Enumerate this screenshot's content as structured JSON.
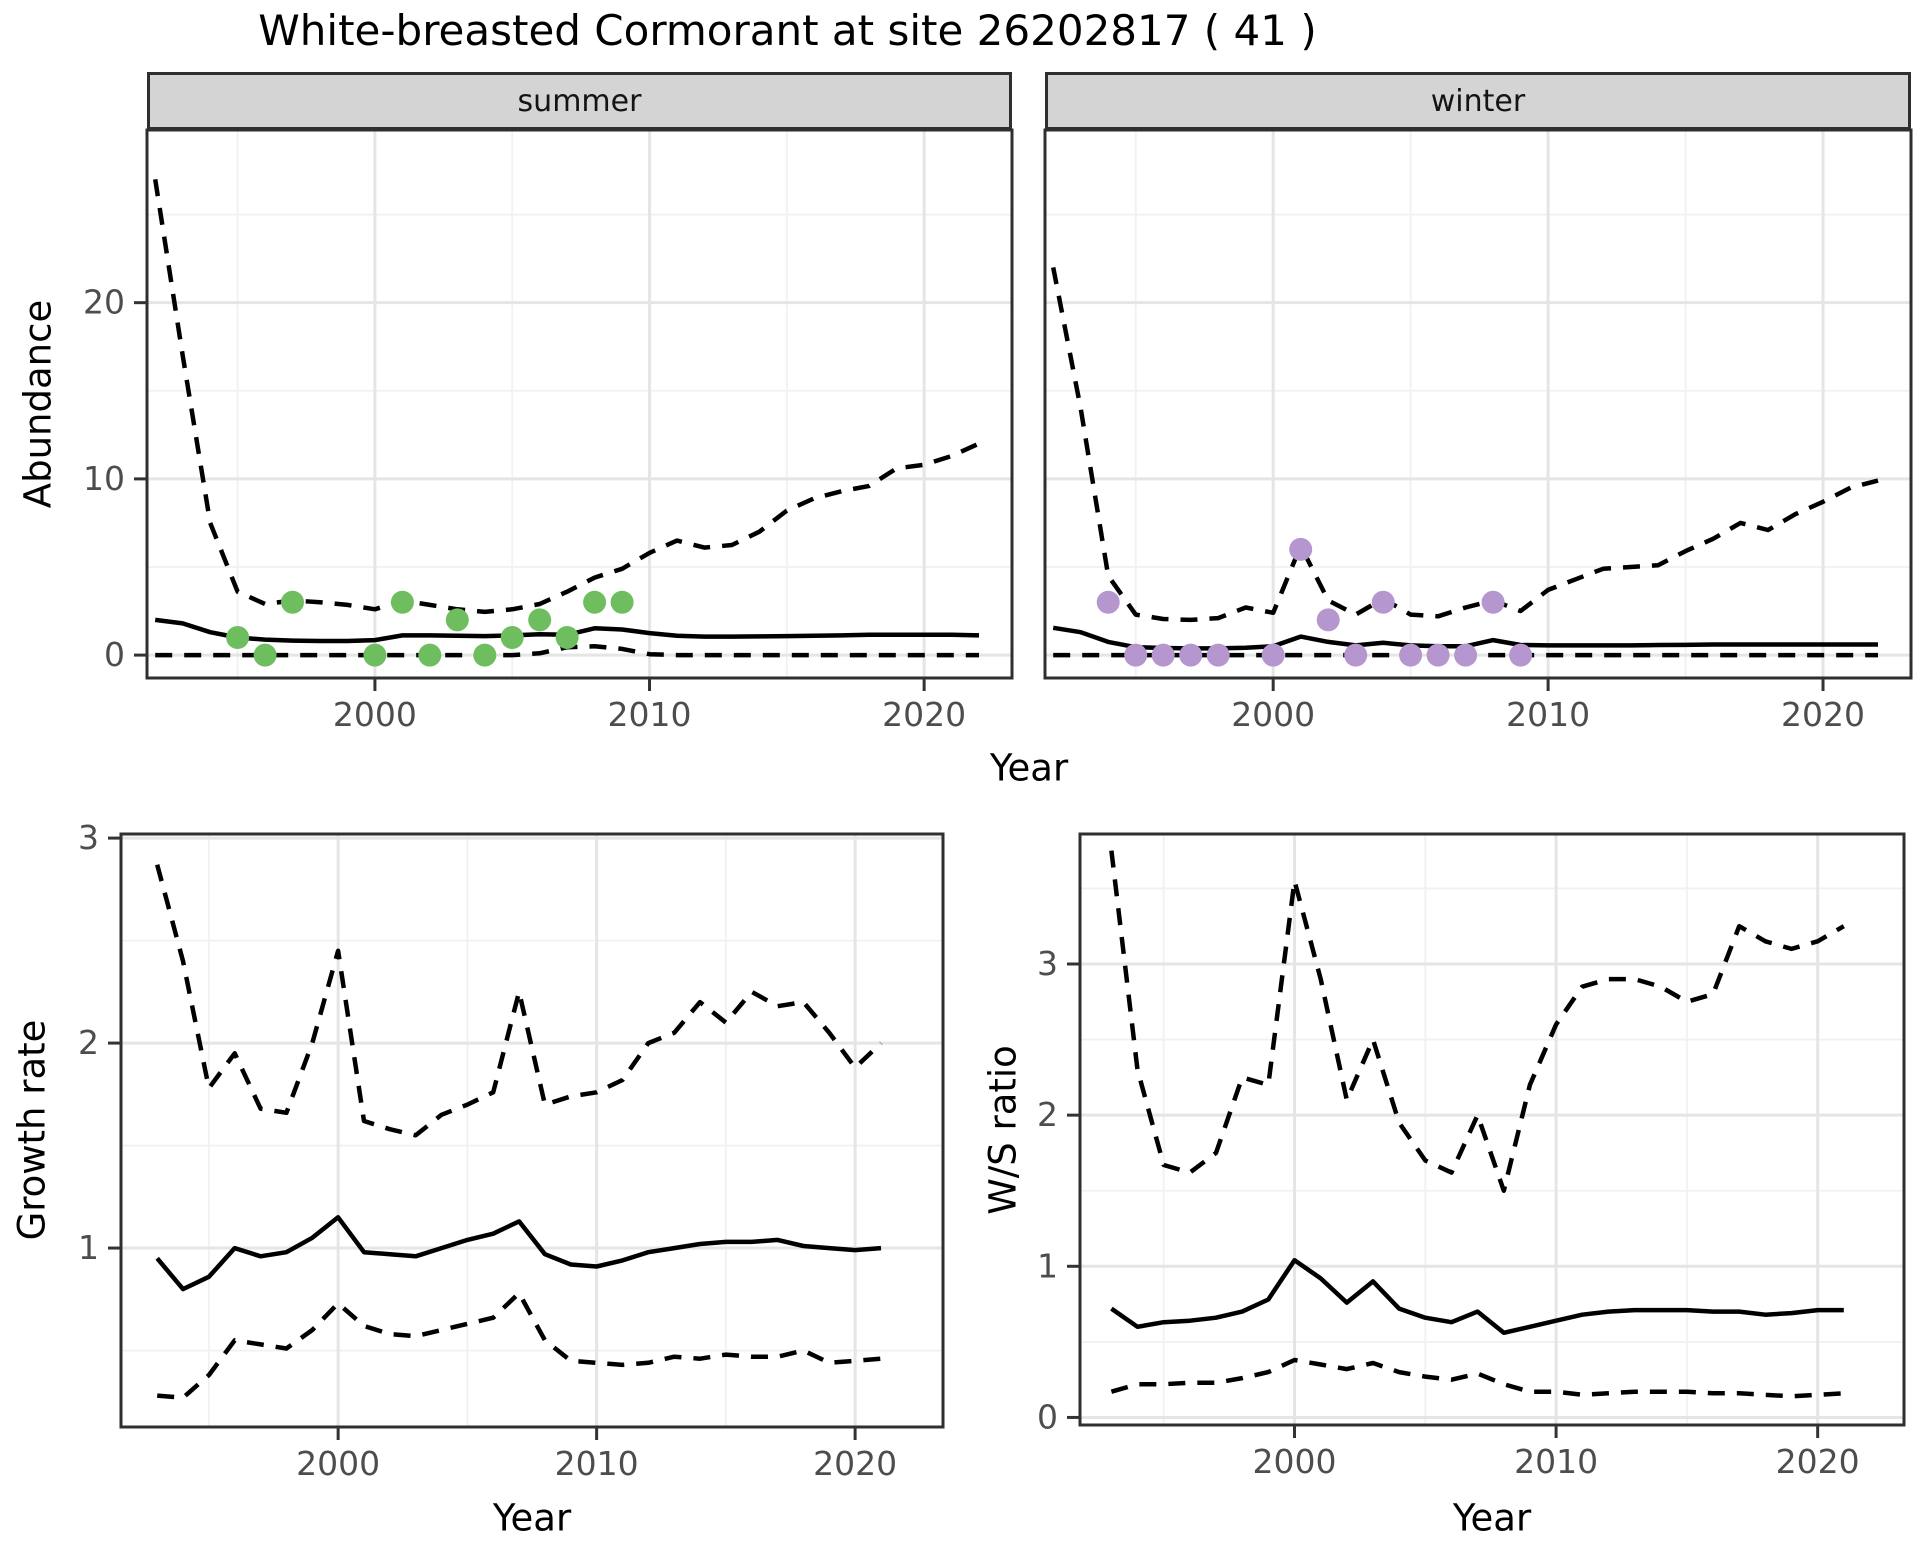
{
  "title": "White-breasted Cormorant at site 26202817 ( 41 )",
  "colors": {
    "summer_point": "#6ebe5f",
    "winter_point": "#b696ce",
    "line": "#000000",
    "grid_major": "#e5e5e5",
    "grid_minor": "#f1f1f1",
    "panel_border": "#2f2f2f",
    "strip_bg": "#d4d4d4",
    "tick_text": "#4d4d4d",
    "tick_mark": "#333333",
    "panel_bg": "#ffffff"
  },
  "chart_data": [
    {
      "id": "abundance-summer",
      "type": "line",
      "facet": "summer",
      "xlabel": "Year",
      "ylabel": "Abundance",
      "xlim": [
        1991.7,
        2023.2
      ],
      "ylim": [
        -1.3,
        29.8
      ],
      "xticks": [
        2000,
        2010,
        2020
      ],
      "xminor": [
        1995,
        2005,
        2015
      ],
      "yticks": [
        0,
        10,
        20
      ],
      "yminor": [
        5,
        15,
        25
      ],
      "x": [
        1992,
        1993,
        1994,
        1995,
        1996,
        1997,
        1998,
        1999,
        2000,
        2001,
        2002,
        2003,
        2004,
        2005,
        2006,
        2007,
        2008,
        2009,
        2010,
        2011,
        2012,
        2013,
        2014,
        2015,
        2016,
        2017,
        2018,
        2019,
        2020,
        2021,
        2022
      ],
      "series": [
        {
          "name": "median",
          "style": "solid",
          "values": [
            2.0,
            1.8,
            1.3,
            1.0,
            0.88,
            0.82,
            0.8,
            0.8,
            0.85,
            1.12,
            1.12,
            1.1,
            1.08,
            1.12,
            1.18,
            1.15,
            1.52,
            1.45,
            1.25,
            1.1,
            1.05,
            1.05,
            1.06,
            1.08,
            1.1,
            1.12,
            1.15,
            1.15,
            1.15,
            1.15,
            1.12
          ]
        },
        {
          "name": "upper_95ci",
          "style": "dashed",
          "values": [
            27.0,
            17.0,
            7.5,
            3.6,
            2.9,
            3.1,
            3.0,
            2.85,
            2.6,
            3.1,
            2.85,
            2.6,
            2.45,
            2.6,
            2.9,
            3.6,
            4.4,
            4.9,
            5.8,
            6.5,
            6.1,
            6.25,
            7.0,
            8.2,
            8.9,
            9.3,
            9.6,
            10.6,
            10.8,
            11.3,
            12.0
          ]
        },
        {
          "name": "lower_95ci",
          "style": "dashed",
          "values": [
            0,
            0,
            0,
            0,
            0,
            0,
            0,
            0,
            0,
            0,
            0,
            0,
            0,
            0,
            0.1,
            0.45,
            0.5,
            0.35,
            0.05,
            0,
            0,
            0,
            0,
            0,
            0,
            0,
            0,
            0,
            0,
            0,
            0
          ]
        }
      ],
      "points": {
        "name": "observed-counts-summer",
        "color_key": "summer_point",
        "x": [
          1995,
          1996,
          1997,
          2000,
          2001,
          2002,
          2003,
          2004,
          2005,
          2006,
          2007,
          2008,
          2009
        ],
        "y": [
          1,
          0,
          3,
          0,
          3,
          0,
          2,
          0,
          1,
          2,
          1,
          3,
          3
        ]
      }
    },
    {
      "id": "abundance-winter",
      "type": "line",
      "facet": "winter",
      "xlabel": "Year",
      "ylabel": "Abundance",
      "xlim": [
        1991.7,
        2023.2
      ],
      "ylim": [
        -1.3,
        29.8
      ],
      "xticks": [
        2000,
        2010,
        2020
      ],
      "xminor": [
        1995,
        2005,
        2015
      ],
      "yticks": [
        0,
        10,
        20
      ],
      "yminor": [
        5,
        15,
        25
      ],
      "x": [
        1992,
        1993,
        1994,
        1995,
        1996,
        1997,
        1998,
        1999,
        2000,
        2001,
        2002,
        2003,
        2004,
        2005,
        2006,
        2007,
        2008,
        2009,
        2010,
        2011,
        2012,
        2013,
        2014,
        2015,
        2016,
        2017,
        2018,
        2019,
        2020,
        2021,
        2022
      ],
      "series": [
        {
          "name": "median",
          "style": "solid",
          "values": [
            1.55,
            1.3,
            0.75,
            0.45,
            0.4,
            0.38,
            0.38,
            0.42,
            0.5,
            1.05,
            0.75,
            0.55,
            0.7,
            0.55,
            0.5,
            0.5,
            0.85,
            0.57,
            0.55,
            0.55,
            0.55,
            0.55,
            0.57,
            0.58,
            0.6,
            0.6,
            0.6,
            0.6,
            0.6,
            0.6,
            0.6
          ]
        },
        {
          "name": "upper_95ci",
          "style": "dashed",
          "values": [
            22.0,
            14.0,
            4.5,
            2.3,
            2.05,
            2.0,
            2.1,
            2.7,
            2.4,
            6.2,
            3.1,
            2.3,
            3.2,
            2.3,
            2.2,
            2.7,
            3.1,
            2.5,
            3.7,
            4.3,
            4.9,
            5.0,
            5.1,
            5.9,
            6.6,
            7.5,
            7.1,
            8.0,
            8.7,
            9.5,
            9.9
          ]
        },
        {
          "name": "lower_95ci",
          "style": "dashed",
          "values": [
            0,
            0,
            0,
            0,
            0,
            0,
            0,
            0,
            0,
            0,
            0,
            0,
            0,
            0,
            0,
            0,
            0,
            0,
            0,
            0,
            0,
            0,
            0,
            0,
            0,
            0,
            0,
            0,
            0,
            0,
            0
          ]
        }
      ],
      "points": {
        "name": "observed-counts-winter",
        "color_key": "winter_point",
        "x": [
          1994,
          1995,
          1996,
          1997,
          1998,
          2000,
          2001,
          2002,
          2003,
          2004,
          2005,
          2006,
          2007,
          2008,
          2009
        ],
        "y": [
          3,
          0,
          0,
          0,
          0,
          0,
          6,
          2,
          0,
          3,
          0,
          0,
          0,
          3,
          0
        ]
      }
    },
    {
      "id": "growth-rate",
      "type": "line",
      "facet": "",
      "xlabel": "Year",
      "ylabel": "Growth rate",
      "xlim": [
        1991.6,
        2023.4
      ],
      "ylim": [
        0.127,
        3.02
      ],
      "xticks": [
        2000,
        2010,
        2020
      ],
      "xminor": [
        1995,
        2005,
        2015
      ],
      "yticks": [
        1,
        2,
        3
      ],
      "yminor": [
        0.5,
        1.5,
        2.5
      ],
      "x": [
        1993,
        1994,
        1995,
        1996,
        1997,
        1998,
        1999,
        2000,
        2001,
        2002,
        2003,
        2004,
        2005,
        2006,
        2007,
        2008,
        2009,
        2010,
        2011,
        2012,
        2013,
        2014,
        2015,
        2016,
        2017,
        2018,
        2019,
        2020,
        2021
      ],
      "series": [
        {
          "name": "median",
          "style": "solid",
          "values": [
            0.95,
            0.8,
            0.86,
            1.0,
            0.96,
            0.98,
            1.05,
            1.15,
            0.98,
            0.97,
            0.96,
            1.0,
            1.04,
            1.07,
            1.13,
            0.97,
            0.92,
            0.91,
            0.94,
            0.98,
            1.0,
            1.02,
            1.03,
            1.03,
            1.04,
            1.01,
            1.0,
            0.99,
            1.0
          ]
        },
        {
          "name": "upper_95ci",
          "style": "dashed",
          "values": [
            2.87,
            2.4,
            1.78,
            1.95,
            1.68,
            1.66,
            2.0,
            2.45,
            1.62,
            1.58,
            1.55,
            1.65,
            1.7,
            1.76,
            2.25,
            1.7,
            1.74,
            1.76,
            1.82,
            2.0,
            2.05,
            2.2,
            2.1,
            2.25,
            2.18,
            2.2,
            2.05,
            1.88,
            2.0
          ]
        },
        {
          "name": "lower_95ci",
          "style": "dashed",
          "values": [
            0.28,
            0.27,
            0.38,
            0.55,
            0.53,
            0.51,
            0.6,
            0.73,
            0.62,
            0.58,
            0.57,
            0.6,
            0.63,
            0.66,
            0.78,
            0.55,
            0.45,
            0.44,
            0.43,
            0.44,
            0.47,
            0.46,
            0.48,
            0.47,
            0.47,
            0.5,
            0.44,
            0.45,
            0.46
          ]
        }
      ],
      "points": null
    },
    {
      "id": "ws-ratio",
      "type": "line",
      "facet": "",
      "xlabel": "Year",
      "ylabel": "W/S ratio",
      "xlim": [
        1991.8,
        2023.3
      ],
      "ylim": [
        -0.05,
        3.86
      ],
      "xticks": [
        2000,
        2010,
        2020
      ],
      "xminor": [
        1995,
        2005,
        2015
      ],
      "yticks": [
        0,
        1,
        2,
        3
      ],
      "yminor": [
        0.5,
        1.5,
        2.5,
        3.5
      ],
      "x": [
        1993,
        1994,
        1995,
        1996,
        1997,
        1998,
        1999,
        2000,
        2001,
        2002,
        2003,
        2004,
        2005,
        2006,
        2007,
        2008,
        2009,
        2010,
        2011,
        2012,
        2013,
        2014,
        2015,
        2016,
        2017,
        2018,
        2019,
        2020,
        2021
      ],
      "series": [
        {
          "name": "median",
          "style": "solid",
          "values": [
            0.72,
            0.6,
            0.63,
            0.64,
            0.66,
            0.7,
            0.78,
            1.04,
            0.92,
            0.76,
            0.9,
            0.72,
            0.66,
            0.63,
            0.7,
            0.56,
            0.6,
            0.64,
            0.68,
            0.7,
            0.71,
            0.71,
            0.71,
            0.7,
            0.7,
            0.68,
            0.69,
            0.71,
            0.71
          ]
        },
        {
          "name": "upper_95ci",
          "style": "dashed",
          "values": [
            3.75,
            2.3,
            1.67,
            1.62,
            1.75,
            2.25,
            2.2,
            3.55,
            2.9,
            2.1,
            2.5,
            1.95,
            1.7,
            1.62,
            2.0,
            1.5,
            2.2,
            2.6,
            2.85,
            2.9,
            2.9,
            2.85,
            2.75,
            2.8,
            3.25,
            3.15,
            3.1,
            3.15,
            3.25
          ]
        },
        {
          "name": "lower_95ci",
          "style": "dashed",
          "values": [
            0.17,
            0.22,
            0.22,
            0.23,
            0.23,
            0.26,
            0.3,
            0.38,
            0.35,
            0.32,
            0.36,
            0.3,
            0.27,
            0.25,
            0.29,
            0.22,
            0.17,
            0.17,
            0.15,
            0.16,
            0.17,
            0.17,
            0.17,
            0.16,
            0.16,
            0.15,
            0.14,
            0.15,
            0.16
          ]
        }
      ],
      "points": null
    }
  ]
}
